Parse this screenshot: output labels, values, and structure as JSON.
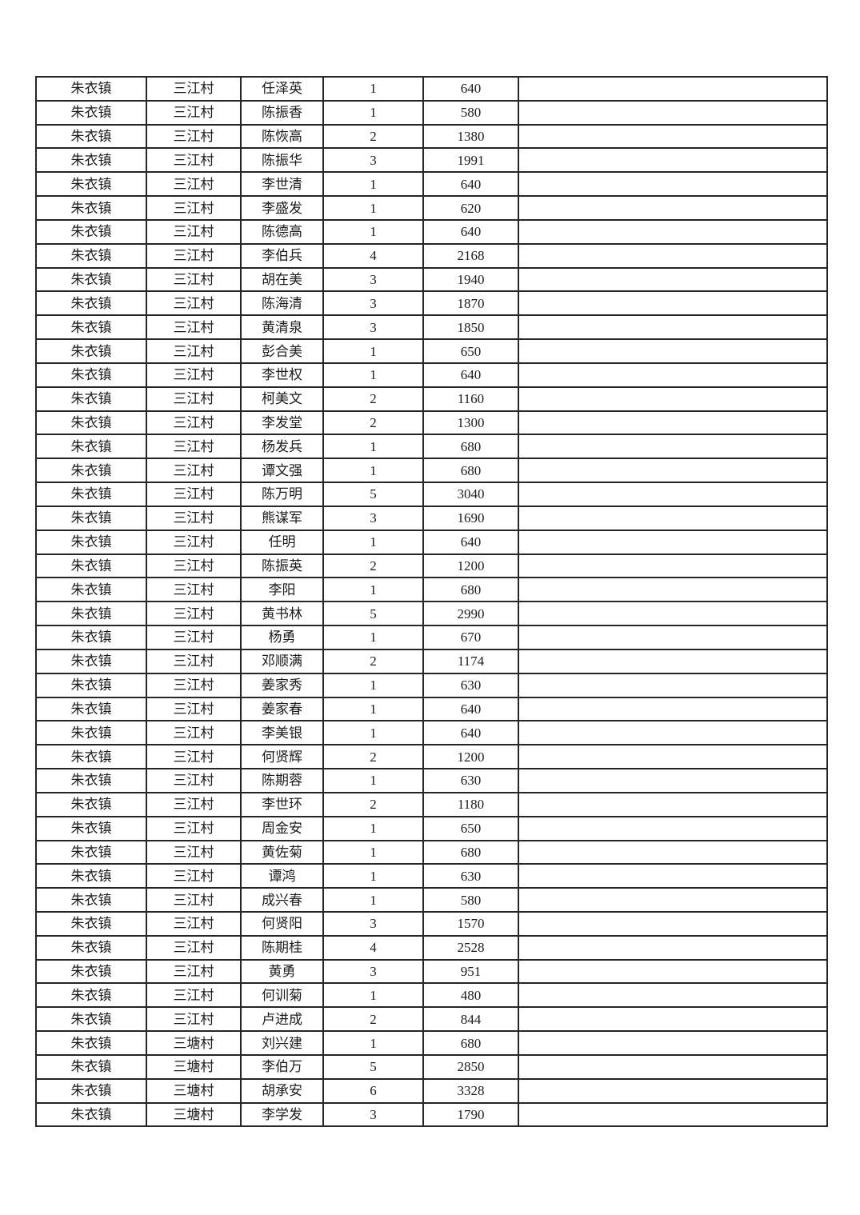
{
  "page": {
    "background": "#ffffff",
    "border_color": "#262626",
    "text_color": "#1c1c1c"
  },
  "table": {
    "column_keys": [
      "town",
      "village",
      "person",
      "count",
      "amount",
      "note"
    ],
    "rows": [
      [
        "朱衣镇",
        "三江村",
        "任泽英",
        "1",
        "640",
        ""
      ],
      [
        "朱衣镇",
        "三江村",
        "陈振香",
        "1",
        "580",
        ""
      ],
      [
        "朱衣镇",
        "三江村",
        "陈恢高",
        "2",
        "1380",
        ""
      ],
      [
        "朱衣镇",
        "三江村",
        "陈振华",
        "3",
        "1991",
        ""
      ],
      [
        "朱衣镇",
        "三江村",
        "李世清",
        "1",
        "640",
        ""
      ],
      [
        "朱衣镇",
        "三江村",
        "李盛发",
        "1",
        "620",
        ""
      ],
      [
        "朱衣镇",
        "三江村",
        "陈德高",
        "1",
        "640",
        ""
      ],
      [
        "朱衣镇",
        "三江村",
        "李伯兵",
        "4",
        "2168",
        ""
      ],
      [
        "朱衣镇",
        "三江村",
        "胡在美",
        "3",
        "1940",
        ""
      ],
      [
        "朱衣镇",
        "三江村",
        "陈海清",
        "3",
        "1870",
        ""
      ],
      [
        "朱衣镇",
        "三江村",
        "黄清泉",
        "3",
        "1850",
        ""
      ],
      [
        "朱衣镇",
        "三江村",
        "彭合美",
        "1",
        "650",
        ""
      ],
      [
        "朱衣镇",
        "三江村",
        "李世权",
        "1",
        "640",
        ""
      ],
      [
        "朱衣镇",
        "三江村",
        "柯美文",
        "2",
        "1160",
        ""
      ],
      [
        "朱衣镇",
        "三江村",
        "李发堂",
        "2",
        "1300",
        ""
      ],
      [
        "朱衣镇",
        "三江村",
        "杨发兵",
        "1",
        "680",
        ""
      ],
      [
        "朱衣镇",
        "三江村",
        "谭文强",
        "1",
        "680",
        ""
      ],
      [
        "朱衣镇",
        "三江村",
        "陈万明",
        "5",
        "3040",
        ""
      ],
      [
        "朱衣镇",
        "三江村",
        "熊谋军",
        "3",
        "1690",
        ""
      ],
      [
        "朱衣镇",
        "三江村",
        "任明",
        "1",
        "640",
        ""
      ],
      [
        "朱衣镇",
        "三江村",
        "陈振英",
        "2",
        "1200",
        ""
      ],
      [
        "朱衣镇",
        "三江村",
        "李阳",
        "1",
        "680",
        ""
      ],
      [
        "朱衣镇",
        "三江村",
        "黄书林",
        "5",
        "2990",
        ""
      ],
      [
        "朱衣镇",
        "三江村",
        "杨勇",
        "1",
        "670",
        ""
      ],
      [
        "朱衣镇",
        "三江村",
        "邓顺满",
        "2",
        "1174",
        ""
      ],
      [
        "朱衣镇",
        "三江村",
        "姜家秀",
        "1",
        "630",
        ""
      ],
      [
        "朱衣镇",
        "三江村",
        "姜家春",
        "1",
        "640",
        ""
      ],
      [
        "朱衣镇",
        "三江村",
        "李美银",
        "1",
        "640",
        ""
      ],
      [
        "朱衣镇",
        "三江村",
        "何贤辉",
        "2",
        "1200",
        ""
      ],
      [
        "朱衣镇",
        "三江村",
        "陈期蓉",
        "1",
        "630",
        ""
      ],
      [
        "朱衣镇",
        "三江村",
        "李世环",
        "2",
        "1180",
        ""
      ],
      [
        "朱衣镇",
        "三江村",
        "周金安",
        "1",
        "650",
        ""
      ],
      [
        "朱衣镇",
        "三江村",
        "黄佐菊",
        "1",
        "680",
        ""
      ],
      [
        "朱衣镇",
        "三江村",
        "谭鸿",
        "1",
        "630",
        ""
      ],
      [
        "朱衣镇",
        "三江村",
        "成兴春",
        "1",
        "580",
        ""
      ],
      [
        "朱衣镇",
        "三江村",
        "何贤阳",
        "3",
        "1570",
        ""
      ],
      [
        "朱衣镇",
        "三江村",
        "陈期桂",
        "4",
        "2528",
        ""
      ],
      [
        "朱衣镇",
        "三江村",
        "黄勇",
        "3",
        "951",
        ""
      ],
      [
        "朱衣镇",
        "三江村",
        "何训菊",
        "1",
        "480",
        ""
      ],
      [
        "朱衣镇",
        "三江村",
        "卢进成",
        "2",
        "844",
        ""
      ],
      [
        "朱衣镇",
        "三塘村",
        "刘兴建",
        "1",
        "680",
        ""
      ],
      [
        "朱衣镇",
        "三塘村",
        "李伯万",
        "5",
        "2850",
        ""
      ],
      [
        "朱衣镇",
        "三塘村",
        "胡承安",
        "6",
        "3328",
        ""
      ],
      [
        "朱衣镇",
        "三塘村",
        "李学发",
        "3",
        "1790",
        ""
      ]
    ]
  }
}
